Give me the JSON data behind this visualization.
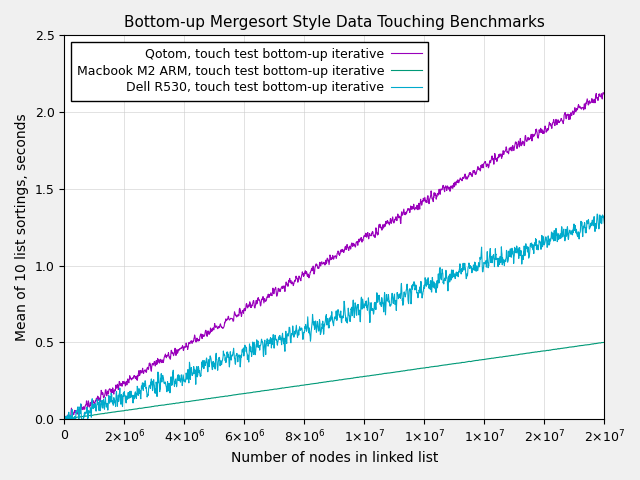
{
  "title": "Bottom-up Mergesort Style Data Touching Benchmarks",
  "xlabel": "Number of nodes in linked list",
  "ylabel": "Mean of 10 list sortings, seconds",
  "xlim": [
    0,
    18000000.0
  ],
  "ylim": [
    0,
    2.5
  ],
  "series": [
    {
      "label": "Qotom, touch test bottom-up iterative",
      "color": "#9900bb",
      "linewidth": 0.8,
      "noise_scale": 0.025,
      "slope": 1.18e-07,
      "intercept": 0.0,
      "seed": 10
    },
    {
      "label": "Macbook M2 ARM, touch test bottom-up iterative",
      "color": "#009977",
      "linewidth": 0.8,
      "noise_scale": 0.001,
      "slope": 2.78e-08,
      "intercept": 0.0,
      "seed": 20
    },
    {
      "label": "Dell R530, touch test bottom-up iterative",
      "color": "#00aacc",
      "linewidth": 0.8,
      "noise_scale": 0.055,
      "slope": 7.2e-08,
      "intercept": 0.0,
      "seed": 30
    }
  ],
  "n_points": 1800,
  "x_max": 18000000.0,
  "legend_fontsize": 9,
  "title_fontsize": 11,
  "axis_fontsize": 10,
  "tick_fontsize": 9,
  "bg_color": "#f0f0f0",
  "plot_bg_color": "#ffffff"
}
